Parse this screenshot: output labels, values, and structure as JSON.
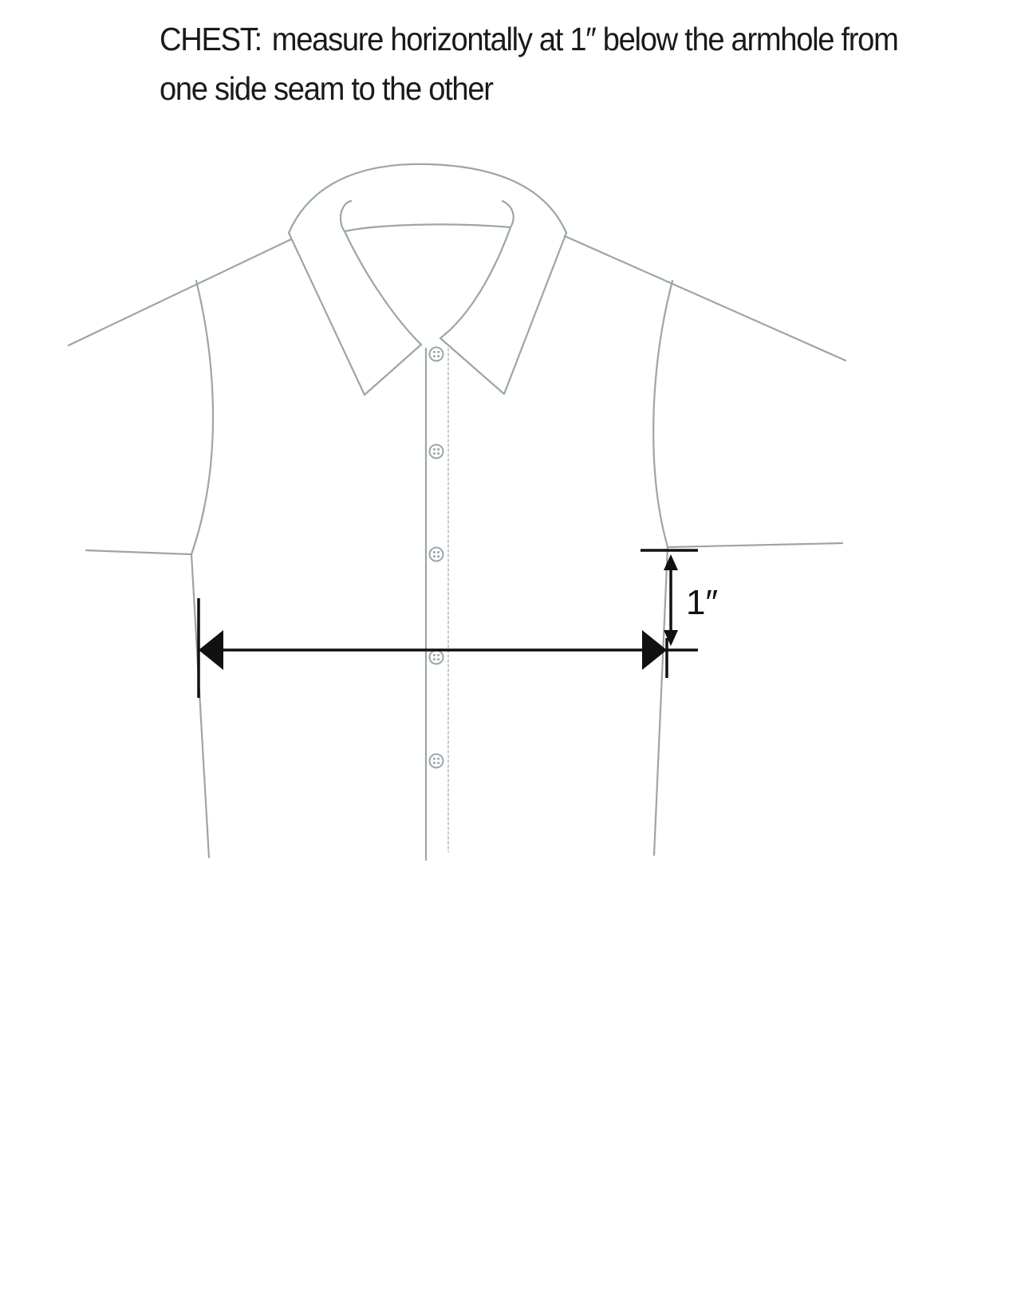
{
  "instruction": {
    "lead": "CHEST:",
    "text": "measure horizontally at 1″ below the armhole from one side seam to the other"
  },
  "diagram": {
    "offset_label": "1″",
    "line_color": "#9aa6aa",
    "measure_color": "#111111",
    "button_count": 5
  }
}
